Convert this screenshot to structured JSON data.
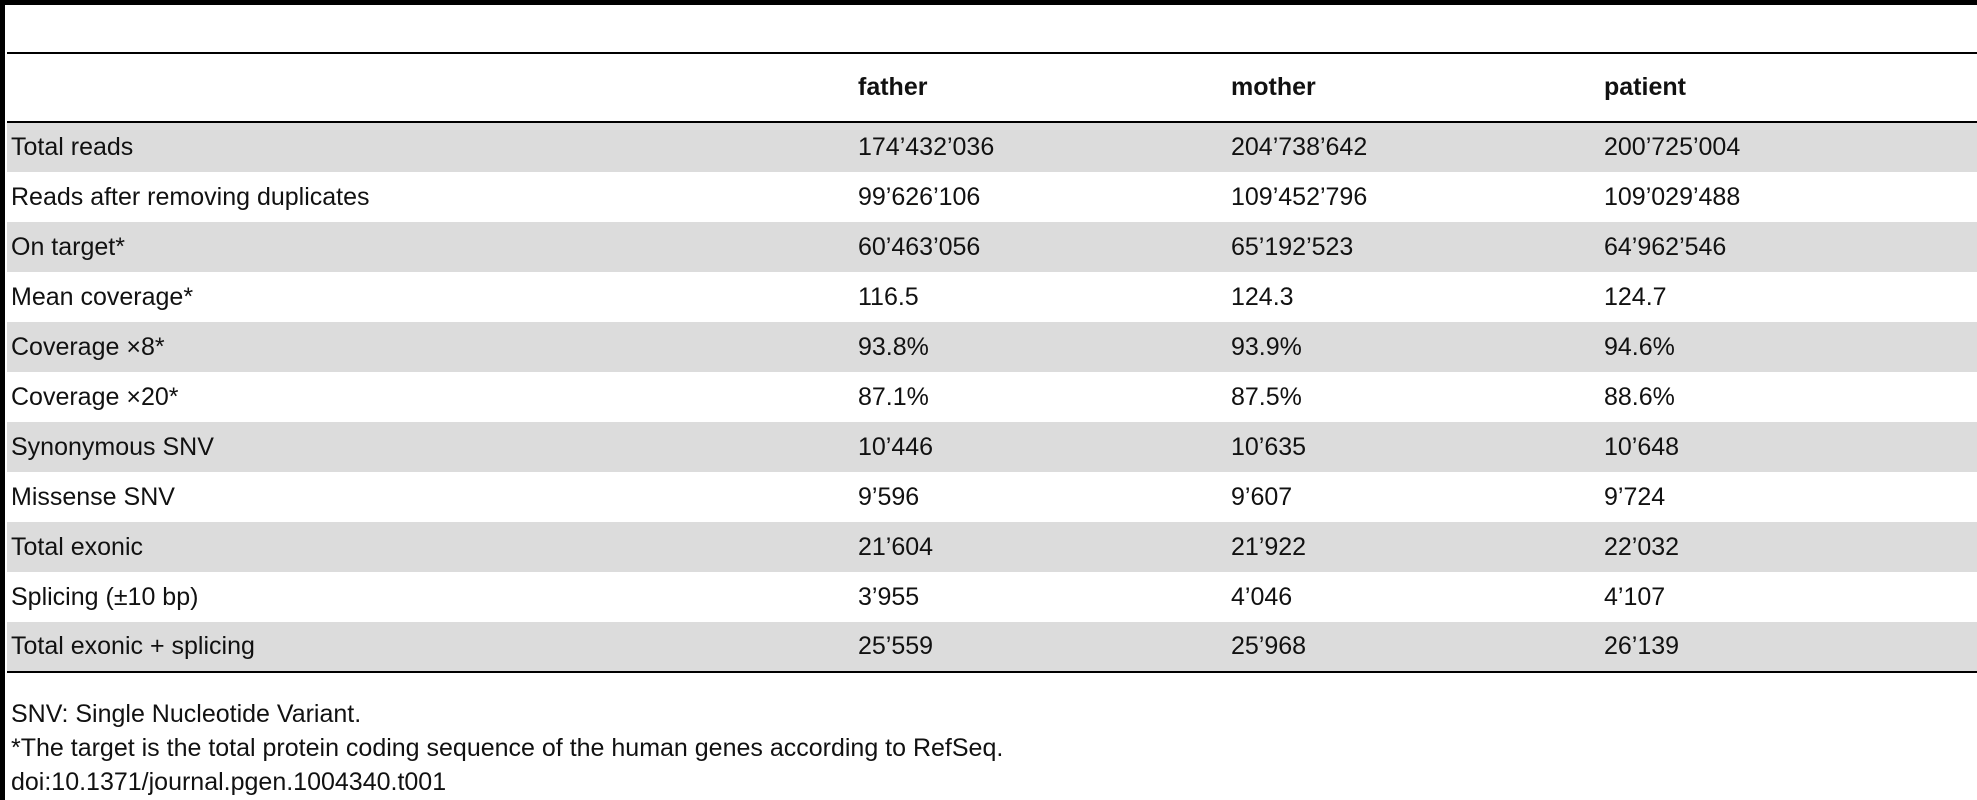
{
  "table": {
    "headers": [
      "",
      "father",
      "mother",
      "patient"
    ],
    "rows": [
      {
        "label": "Total reads",
        "values": [
          "174’432’036",
          "204’738’642",
          "200’725’004"
        ]
      },
      {
        "label": "Reads after removing duplicates",
        "values": [
          "99’626’106",
          "109’452’796",
          "109’029’488"
        ]
      },
      {
        "label": "On target*",
        "values": [
          "60’463’056",
          "65’192’523",
          "64’962’546"
        ]
      },
      {
        "label": "Mean coverage*",
        "values": [
          "116.5",
          "124.3",
          "124.7"
        ]
      },
      {
        "label": "Coverage ×8*",
        "values": [
          "93.8%",
          "93.9%",
          "94.6%"
        ]
      },
      {
        "label": "Coverage ×20*",
        "values": [
          "87.1%",
          "87.5%",
          "88.6%"
        ]
      },
      {
        "label": "Synonymous SNV",
        "values": [
          "10’446",
          "10’635",
          "10’648"
        ]
      },
      {
        "label": "Missense SNV",
        "values": [
          "9’596",
          "9’607",
          "9’724"
        ]
      },
      {
        "label": "Total exonic",
        "values": [
          "21’604",
          "21’922",
          "22’032"
        ]
      },
      {
        "label": "Splicing (±10 bp)",
        "values": [
          "3’955",
          "4’046",
          "4’107"
        ]
      },
      {
        "label": "Total exonic + splicing",
        "values": [
          "25’559",
          "25’968",
          "26’139"
        ]
      }
    ]
  },
  "footnotes": {
    "abbrev": "SNV: Single Nucleotide Variant.",
    "target": "*The target is the total protein coding sequence of the human genes according to RefSeq.",
    "doi": "doi:10.1371/journal.pgen.1004340.t001"
  },
  "colors": {
    "shade": "#dcdcdc",
    "rule": "#000000"
  }
}
